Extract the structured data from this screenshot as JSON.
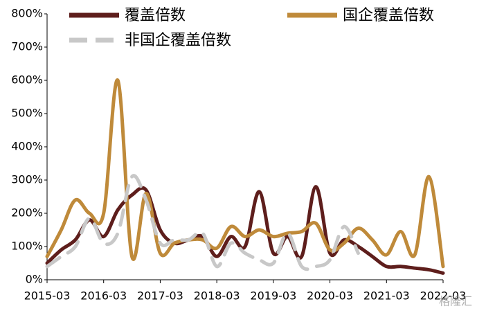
{
  "chart_data": {
    "type": "line",
    "categories": [
      "2015-03",
      null,
      null,
      null,
      "2016-03",
      null,
      null,
      null,
      "2017-03",
      null,
      null,
      null,
      "2018-03",
      null,
      null,
      null,
      "2019-03",
      null,
      null,
      null,
      "2020-03",
      null,
      null,
      null,
      "2021-03",
      null,
      null,
      null,
      "2022-03"
    ],
    "series": [
      {
        "name": "覆盖倍数",
        "color": "#5e1e1c",
        "dash": false,
        "values": [
          50,
          90,
          120,
          180,
          130,
          210,
          255,
          270,
          150,
          110,
          120,
          130,
          70,
          130,
          100,
          265,
          80,
          130,
          70,
          280,
          80,
          120,
          100,
          70,
          40,
          40,
          35,
          30,
          20
        ]
      },
      {
        "name": "国企覆盖倍数",
        "color": "#bf8a3a",
        "dash": false,
        "values": [
          70,
          150,
          240,
          200,
          200,
          600,
          70,
          260,
          80,
          110,
          120,
          120,
          95,
          160,
          130,
          150,
          130,
          140,
          145,
          170,
          90,
          110,
          155,
          120,
          75,
          145,
          75,
          310,
          40
        ]
      },
      {
        "name": "非国企覆盖倍数",
        "color": "#c8c8c8",
        "dash": true,
        "values": [
          40,
          70,
          100,
          185,
          110,
          140,
          310,
          240,
          110,
          120,
          120,
          140,
          40,
          110,
          80,
          60,
          50,
          140,
          40,
          40,
          60,
          160,
          80,
          null,
          null,
          null,
          null,
          null,
          null
        ]
      }
    ],
    "ylim": [
      0,
      800
    ],
    "yticks": [
      {
        "value": 0,
        "label": "0%"
      },
      {
        "value": 100,
        "label": "100%"
      },
      {
        "value": 200,
        "label": "200%"
      },
      {
        "value": 300,
        "label": "300%"
      },
      {
        "value": 400,
        "label": "400%"
      },
      {
        "value": 500,
        "label": "500%"
      },
      {
        "value": 600,
        "label": "600%"
      },
      {
        "value": 700,
        "label": "700%"
      },
      {
        "value": 800,
        "label": "800%"
      }
    ],
    "watermark": "格隆汇"
  }
}
